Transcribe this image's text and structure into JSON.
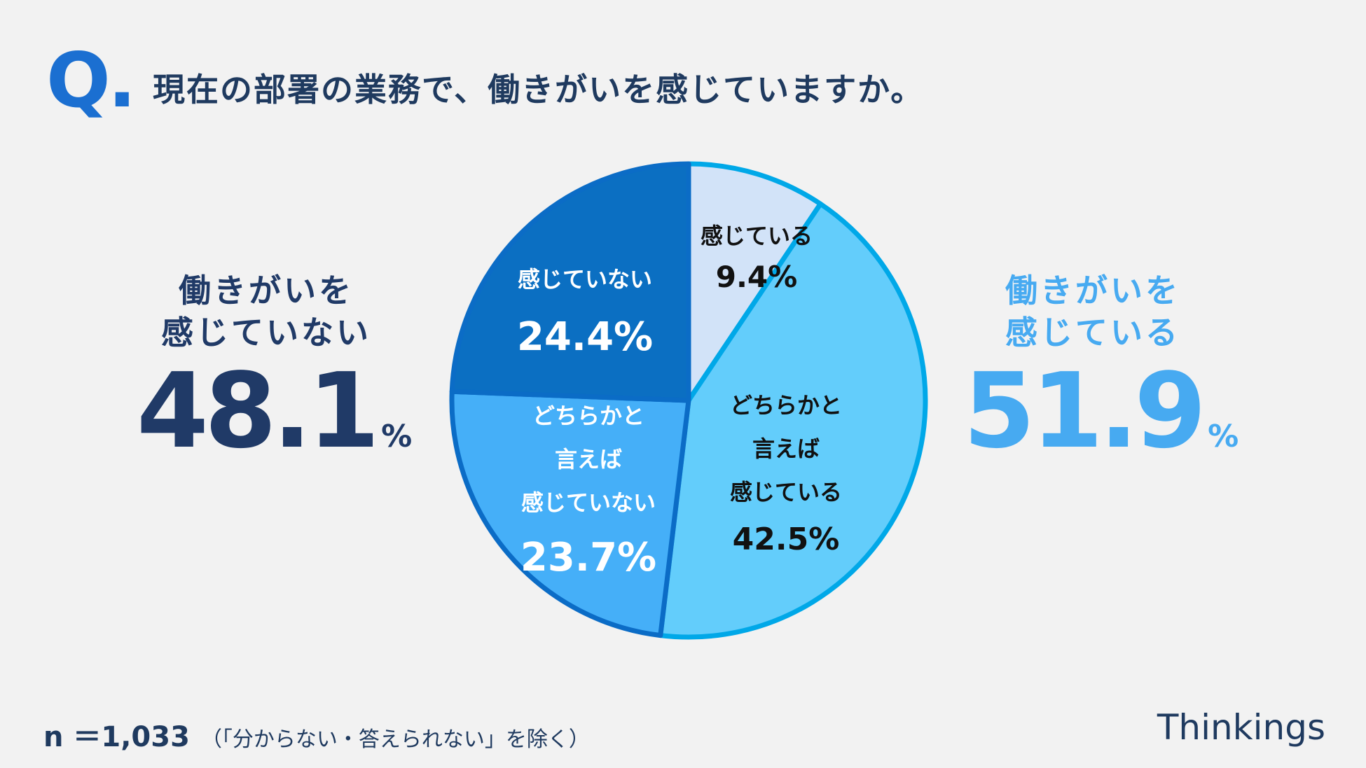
{
  "question": {
    "mark": "Q.",
    "text": "現在の部署の業務で、働きがいを感じていますか。"
  },
  "left_summary": {
    "label_line1": "働きがいを",
    "label_line2": "感じていない",
    "value": "48.1",
    "unit": "%"
  },
  "right_summary": {
    "label_line1": "働きがいを",
    "label_line2": "感じている",
    "value": "51.9",
    "unit": "%"
  },
  "chart_data": {
    "type": "pie",
    "slices": [
      {
        "label_lines": [
          "感じている"
        ],
        "value": 9.4,
        "value_label": "9.4%",
        "color": "#d2e3f8",
        "label_color": "#111111",
        "stroke": "#00a8e8"
      },
      {
        "label_lines": [
          "どちらかと",
          "言えば",
          "感じている"
        ],
        "value": 42.5,
        "value_label": "42.5%",
        "color": "#63cdfb",
        "label_color": "#111111",
        "stroke": "#00a8e8"
      },
      {
        "label_lines": [
          "どちらかと",
          "言えば",
          "感じていない"
        ],
        "value": 23.7,
        "value_label": "23.7%",
        "color": "#45aff8",
        "label_color": "#ffffff",
        "stroke": "#0b6cc6"
      },
      {
        "label_lines": [
          "感じていない"
        ],
        "value": 24.4,
        "value_label": "24.4%",
        "color": "#0b6fc2",
        "label_color": "#ffffff",
        "stroke": "#0b6cc6"
      }
    ]
  },
  "footer": {
    "n_label": "n ＝1,033",
    "note": "（「分からない・答えられない」を除く）",
    "brand": "Thinkings"
  }
}
